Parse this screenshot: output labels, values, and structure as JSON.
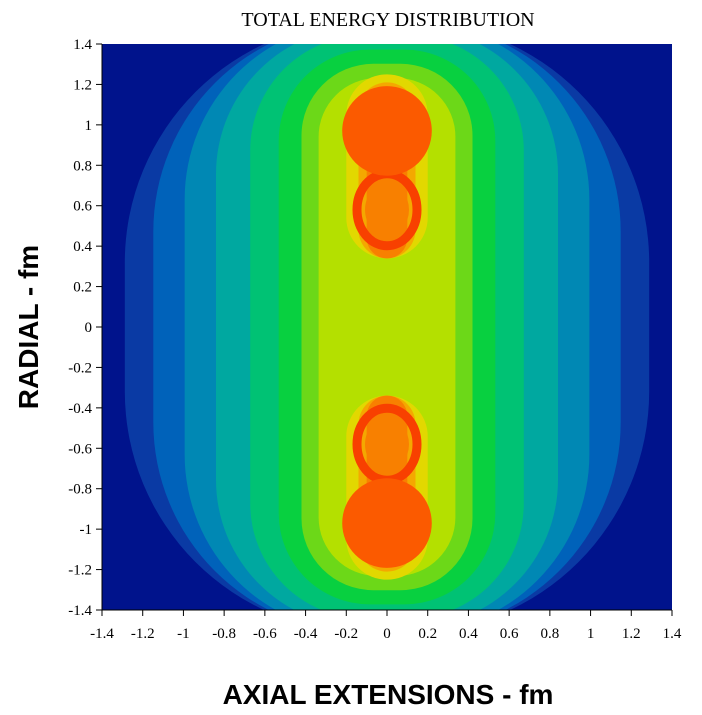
{
  "chart_data": {
    "type": "heatmap",
    "title": "TOTAL ENERGY DISTRIBUTION",
    "xlabel": "AXIAL EXTENSIONS - fm",
    "ylabel": "RADIAL - fm",
    "xlim": [
      -1.4,
      1.4
    ],
    "ylim": [
      -1.4,
      1.4
    ],
    "x_ticks": [
      "-1.4",
      "-1.2",
      "-1",
      "-0.8",
      "-0.6",
      "-0.4",
      "-0.2",
      "0",
      "0.2",
      "0.4",
      "0.6",
      "0.8",
      "1",
      "1.2",
      "1.4"
    ],
    "y_ticks": [
      "1.4",
      "1.2",
      "1",
      "0.8",
      "0.6",
      "0.4",
      "0.2",
      "0",
      "-0.2",
      "-0.4",
      "-0.6",
      "-0.8",
      "-1",
      "-1.2",
      "-1.4"
    ],
    "grid": false,
    "palette": [
      "#00138c",
      "#0a3aa4",
      "#0062ba",
      "#0088b4",
      "#00a8a0",
      "#00c274",
      "#08d040",
      "#6cd818",
      "#b4e000",
      "#e2d800",
      "#f4a800",
      "#f88000",
      "#f84000",
      "#fb5a00"
    ],
    "peaks": [
      {
        "x": 0,
        "y": 0.97,
        "radius": 0.22
      },
      {
        "x": 0,
        "y": -0.97,
        "radius": 0.22
      }
    ],
    "inner_rings": [
      {
        "x": 0,
        "y": 0.58
      },
      {
        "x": 0,
        "y": -0.58
      }
    ]
  }
}
